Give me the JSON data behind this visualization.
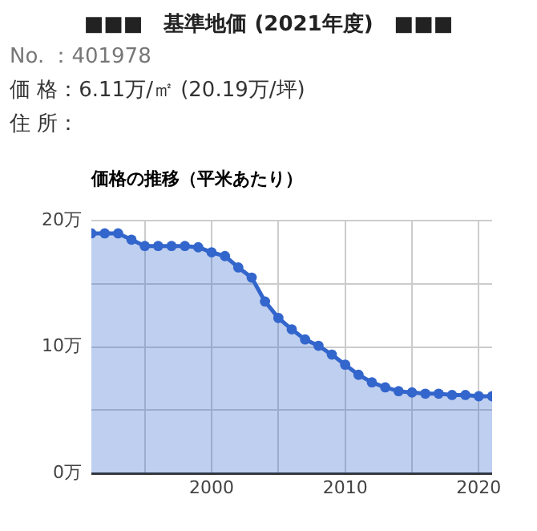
{
  "chart_data": {
    "type": "area",
    "title": "■■■　基準地価 (2021年度)　■■■",
    "subtitle": "価格の推移（平米あたり）",
    "annotations": [
      "No. ：401978",
      "価 格：6.11万/㎡ (20.19万/坪)",
      "住 所："
    ],
    "x": [
      1991,
      1992,
      1993,
      1994,
      1995,
      1996,
      1997,
      1998,
      1999,
      2000,
      2001,
      2002,
      2003,
      2004,
      2005,
      2006,
      2007,
      2008,
      2009,
      2010,
      2011,
      2012,
      2013,
      2014,
      2015,
      2016,
      2017,
      2018,
      2019,
      2020,
      2021
    ],
    "series": [
      {
        "color": "#3366cc",
        "values": [
          19,
          19,
          19,
          18.5,
          18,
          18,
          18,
          18,
          17.9,
          17.5,
          17.2,
          16.3,
          15.5,
          13.6,
          12.3,
          11.4,
          10.6,
          10.1,
          9.4,
          8.6,
          7.8,
          7.2,
          6.8,
          6.5,
          6.4,
          6.3,
          6.3,
          6.2,
          6.2,
          6.1,
          6.1
        ]
      }
    ],
    "xlim": [
      1991,
      2021
    ],
    "xticks": [
      {
        "value": 1995,
        "label": null
      },
      2000,
      {
        "value": 2005,
        "label": null
      },
      2010,
      {
        "value": 2015,
        "label": null
      },
      2020
    ],
    "ylim": [
      0,
      20
    ],
    "yticks": [
      {
        "value": 0,
        "label": "0万"
      },
      {
        "value": 5,
        "label": null
      },
      {
        "value": 10,
        "label": "10万"
      },
      {
        "value": 15,
        "label": null
      },
      {
        "value": 20,
        "label": "20万"
      }
    ],
    "grid": true,
    "marker": "circle"
  }
}
